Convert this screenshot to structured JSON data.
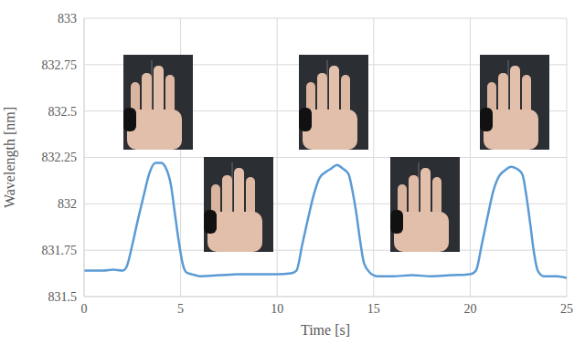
{
  "chart_data": {
    "type": "line",
    "x_label": "Time [s]",
    "y_label": "Wavelength [nm]",
    "x": [
      0,
      0.5,
      1,
      1.5,
      2,
      2.2,
      2.5,
      2.8,
      3.1,
      3.4,
      3.7,
      4.0,
      4.2,
      4.5,
      4.7,
      4.9,
      5.1,
      5.3,
      5.6,
      6,
      7,
      8,
      9,
      10,
      10.7,
      11,
      11.3,
      11.6,
      11.9,
      12.2,
      12.5,
      12.8,
      13.1,
      13.4,
      13.7,
      13.9,
      14.1,
      14.3,
      14.5,
      14.8,
      15.2,
      16,
      17,
      18,
      19,
      20,
      20.3,
      20.6,
      20.9,
      21.2,
      21.5,
      21.8,
      22.1,
      22.4,
      22.7,
      22.9,
      23.1,
      23.3,
      23.5,
      23.8,
      24.5,
      25
    ],
    "values": [
      831.64,
      831.64,
      831.64,
      831.645,
      831.64,
      831.66,
      831.78,
      831.92,
      832.05,
      832.17,
      832.22,
      832.22,
      832.2,
      832.1,
      831.95,
      831.8,
      831.68,
      831.63,
      831.62,
      831.61,
      831.615,
      831.62,
      831.62,
      831.62,
      831.625,
      831.64,
      831.78,
      831.92,
      832.05,
      832.14,
      832.17,
      832.19,
      832.21,
      832.19,
      832.16,
      832.07,
      831.95,
      831.8,
      831.68,
      831.63,
      831.61,
      831.61,
      831.615,
      831.61,
      831.615,
      831.62,
      831.64,
      831.78,
      831.93,
      832.07,
      832.15,
      832.18,
      832.2,
      832.19,
      832.16,
      832.05,
      831.9,
      831.74,
      831.64,
      831.61,
      831.61,
      831.6
    ],
    "color": "#5b9bd5",
    "xlim": [
      0,
      25
    ],
    "ylim": [
      831.5,
      833
    ],
    "xticks": [
      0,
      5,
      10,
      15,
      20,
      25
    ],
    "yticks": [
      831.5,
      831.75,
      832,
      832.25,
      832.5,
      832.75,
      833
    ],
    "grid": true
  }
}
